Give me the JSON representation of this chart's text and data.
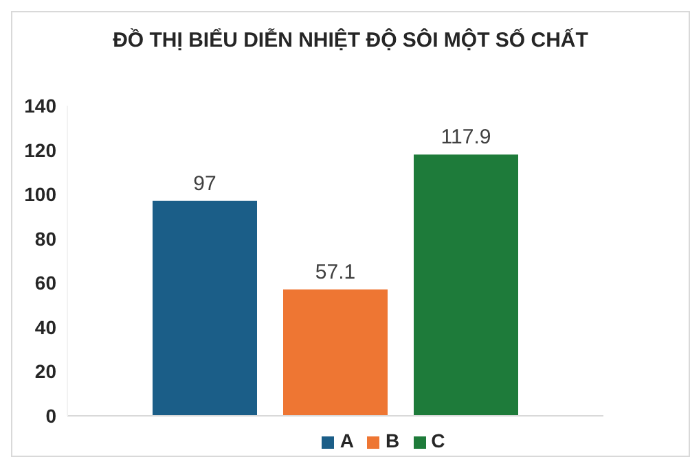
{
  "chart_data": {
    "type": "bar",
    "title": "ĐỒ THỊ BIỂU DIỄN NHIỆT ĐỘ SÔI MỘT SỐ CHẤT",
    "categories": [
      null
    ],
    "series": [
      {
        "name": "A",
        "color": "#1b5e88",
        "values": [
          97
        ]
      },
      {
        "name": "B",
        "color": "#ee7633",
        "values": [
          57.1
        ]
      },
      {
        "name": "C",
        "color": "#1e7b3a",
        "values": [
          117.9
        ]
      }
    ],
    "ylim": [
      0,
      140
    ],
    "yticks": [
      0,
      20,
      40,
      60,
      80,
      100,
      120,
      140
    ],
    "grid": false,
    "legend": "bottom",
    "data_labels": true
  }
}
